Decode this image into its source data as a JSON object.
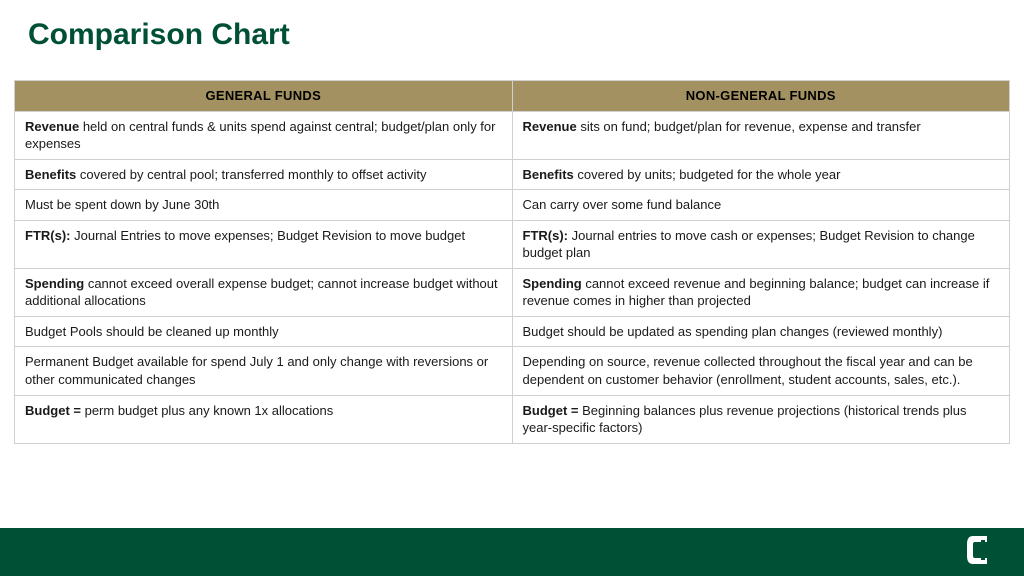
{
  "title": "Comparison Chart",
  "title_color": "#005035",
  "header_bg": "#a39161",
  "header_text_color": "#000000",
  "cell_border_color": "#d0d0d0",
  "footer_color": "#005035",
  "logo_bg": "#005035",
  "logo_fg": "#ffffff",
  "columns": [
    "GENERAL FUNDS",
    "NON-GENERAL FUNDS"
  ],
  "rows": [
    {
      "left_bold": "Revenue",
      "left_rest": " held on central funds & units spend against central; budget/plan only for expenses",
      "right_bold": "Revenue",
      "right_rest": " sits on fund; budget/plan for revenue, expense and transfer"
    },
    {
      "left_bold": "Benefits",
      "left_rest": " covered by central pool; transferred monthly to offset activity",
      "right_bold": "Benefits",
      "right_rest": " covered by units; budgeted for the whole year"
    },
    {
      "left_bold": "",
      "left_rest": "Must be spent down by June 30th",
      "right_bold": "",
      "right_rest": "Can carry over some fund balance"
    },
    {
      "left_bold": "FTR(s):",
      "left_rest": " Journal Entries to move expenses; Budget Revision to move budget",
      "right_bold": "FTR(s):",
      "right_rest": " Journal entries to move cash or expenses; Budget Revision to change budget plan"
    },
    {
      "left_bold": "Spending",
      "left_rest": " cannot exceed overall expense budget; cannot increase budget without additional allocations",
      "right_bold": "Spending",
      "right_rest": " cannot exceed revenue and beginning balance; budget can increase if revenue comes in higher than projected"
    },
    {
      "left_bold": "",
      "left_rest": "Budget Pools should be cleaned up monthly",
      "right_bold": "",
      "right_rest": "Budget should be updated as spending plan changes (reviewed monthly)"
    },
    {
      "left_bold": "",
      "left_rest": "Permanent Budget available for spend July 1 and only change with reversions or other communicated changes",
      "right_bold": "",
      "right_rest": "Depending on source, revenue collected throughout the fiscal year and can be dependent on customer behavior (enrollment, student accounts, sales, etc.)."
    },
    {
      "left_bold": "Budget =",
      "left_rest": " perm budget plus any known 1x allocations",
      "right_bold": "Budget =",
      "right_rest": " Beginning balances plus revenue projections (historical trends plus year-specific factors)"
    }
  ]
}
